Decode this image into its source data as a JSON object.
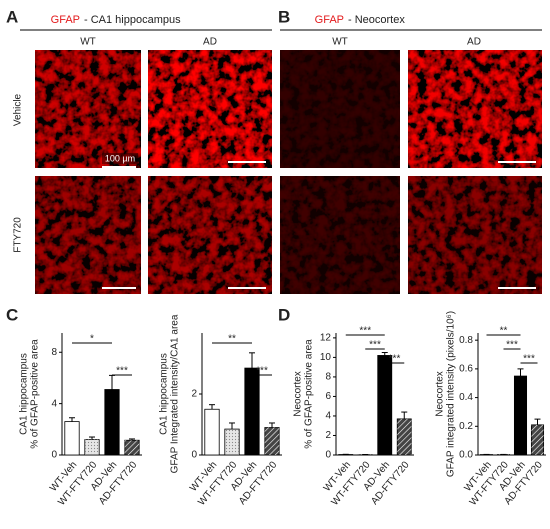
{
  "figure": {
    "panel_labels": [
      "A",
      "B",
      "C",
      "D"
    ],
    "titles": [
      {
        "stain": "GFAP",
        "region": "- CA1 hippocampus"
      },
      {
        "stain": "GFAP",
        "region": "- Neocortex"
      }
    ],
    "column_labels": [
      "WT",
      "AD",
      "WT",
      "AD"
    ],
    "row_labels": [
      "Vehicle",
      "FTY720"
    ],
    "scale_bar": "100 µm"
  },
  "chart_data": [
    {
      "type": "bar",
      "ylabel": [
        "CA1 hippocampus",
        "% of GFAP-positive area"
      ],
      "categories": [
        "WT-Veh",
        "WT-FTY720",
        "AD-Veh",
        "AD-FTY720"
      ],
      "values": [
        2.6,
        1.2,
        5.1,
        1.15
      ],
      "errors": [
        0.3,
        0.2,
        1.1,
        0.1
      ],
      "colors": [
        "#ffffff",
        "#e6e6e6",
        "#000000",
        "#444444"
      ],
      "ylim": [
        0,
        9.5
      ],
      "yticks": [
        0,
        4,
        8
      ],
      "annotations": [
        "*",
        "***"
      ]
    },
    {
      "type": "bar",
      "ylabel": [
        "CA1 hippocampus",
        "GFAP Integrated intensity/CA1 area"
      ],
      "categories": [
        "WT-Veh",
        "WT-FTY720",
        "AD-Veh",
        "AD-FTY720"
      ],
      "values": [
        1.5,
        0.85,
        2.85,
        0.9
      ],
      "errors": [
        0.15,
        0.2,
        0.5,
        0.15
      ],
      "colors": [
        "#ffffff",
        "#e6e6e6",
        "#000000",
        "#444444"
      ],
      "ylim": [
        0,
        4
      ],
      "yticks": [
        0,
        2
      ],
      "annotations": [
        "**",
        "***"
      ]
    },
    {
      "type": "bar",
      "ylabel": [
        "Neocortex",
        "% of GFAP-positive area"
      ],
      "categories": [
        "WT-Veh",
        "WT-FTY720",
        "AD-Veh",
        "AD-FTY720"
      ],
      "values": [
        0.05,
        0.03,
        10.2,
        3.7
      ],
      "errors": [
        0.02,
        0.02,
        0.3,
        0.7
      ],
      "colors": [
        "#ffffff",
        "#e6e6e6",
        "#000000",
        "#444444"
      ],
      "ylim": [
        0,
        12.5
      ],
      "yticks": [
        0,
        2,
        4,
        6,
        8,
        10,
        12
      ],
      "annotations": [
        "***",
        "***",
        "***"
      ]
    },
    {
      "type": "bar",
      "ylabel": [
        "Neocortex",
        "GFAP integrated intensity (pixels/10⁶)"
      ],
      "categories": [
        "WT-Veh",
        "WT-FTY720",
        "AD-Veh",
        "AD-FTY720"
      ],
      "values": [
        0.003,
        0.003,
        0.55,
        0.21
      ],
      "errors": [
        0.001,
        0.001,
        0.05,
        0.04
      ],
      "colors": [
        "#ffffff",
        "#e6e6e6",
        "#000000",
        "#444444"
      ],
      "ylim": [
        0,
        0.85
      ],
      "yticks": [
        {
          "value": 0,
          "label": "0.0"
        },
        0.2,
        0.4,
        0.6,
        0.8
      ],
      "annotations": [
        "**",
        "***",
        "***"
      ]
    }
  ]
}
